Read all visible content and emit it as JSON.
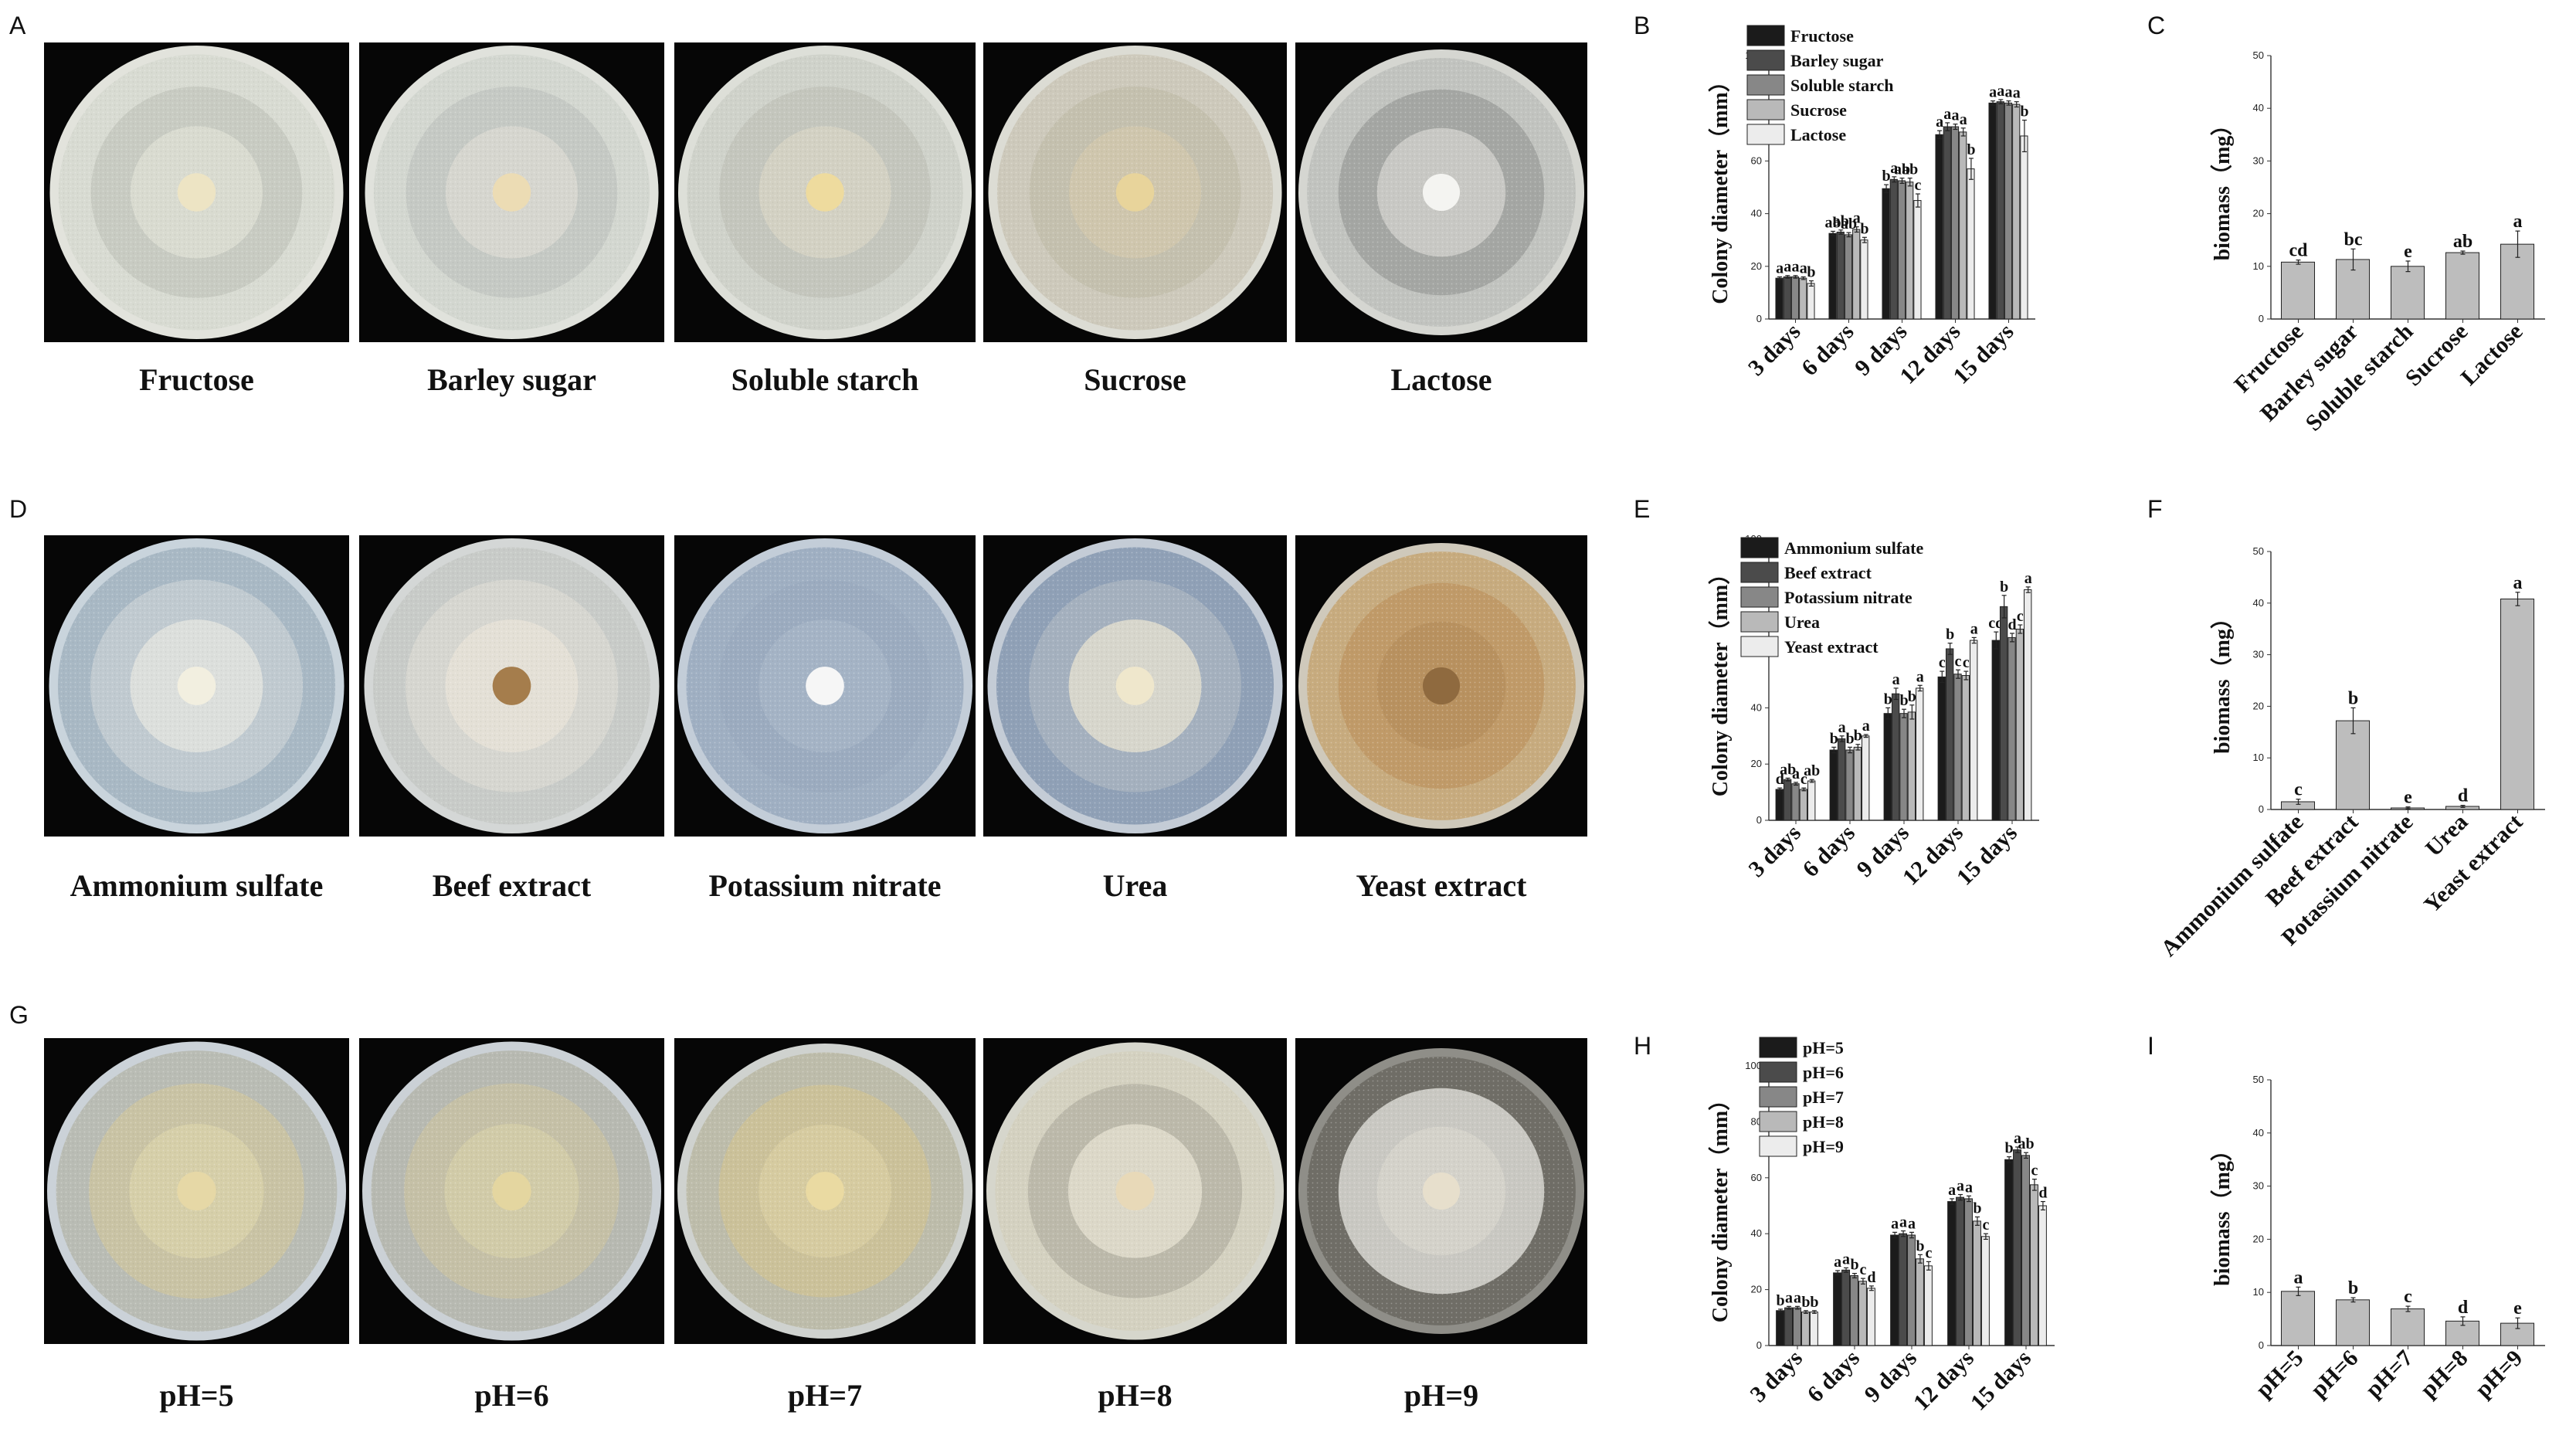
{
  "panels": {
    "A": "A",
    "B": "B",
    "C": "C",
    "D": "D",
    "E": "E",
    "F": "F",
    "G": "G",
    "H": "H",
    "I": "I"
  },
  "photo_rows": [
    {
      "panel": "A",
      "plates": [
        {
          "label": "Fructose",
          "colors": {
            "rim": "#e2e3dc",
            "outer": "#d8dbd2",
            "mid": "#c8cbc2",
            "inner": "#d9dbd0",
            "center": "#ede4c4"
          }
        },
        {
          "label": "Barley sugar",
          "colors": {
            "rim": "#e0e2dc",
            "outer": "#d3d7d0",
            "mid": "#c5c9c4",
            "inner": "#d6d6cf",
            "center": "#ecdcb4"
          }
        },
        {
          "label": "Soluble starch",
          "colors": {
            "rim": "#dddfd8",
            "outer": "#cfd2ca",
            "mid": "#c4c6bd",
            "inner": "#d3d1c3",
            "center": "#eedb9e"
          }
        },
        {
          "label": "Sucrose",
          "colors": {
            "rim": "#dcdcd4",
            "outer": "#cdc9bb",
            "mid": "#c4c0ae",
            "inner": "#cfc6ad",
            "center": "#e8d49b"
          }
        },
        {
          "label": "Lactose",
          "colors": {
            "rim": "#d5d6d1",
            "outer": "#c1c3bf",
            "mid": "#a4a6a3",
            "inner": "#c8c8c4",
            "center": "#f4f4f1"
          }
        }
      ]
    },
    {
      "panel": "D",
      "plates": [
        {
          "label": "Ammonium sulfate",
          "colors": {
            "rim": "#c9d4dc",
            "outer": "#a8b8c4",
            "mid": "#c0cad0",
            "inner": "#dcdfdc",
            "center": "#f2efe0"
          }
        },
        {
          "label": "Beef extract",
          "colors": {
            "rim": "#d4d7d6",
            "outer": "#c8cbc8",
            "mid": "#d6d6d0",
            "inner": "#e4e0d6",
            "center": "#a57d4c"
          }
        },
        {
          "label": "Potassium nitrate",
          "colors": {
            "rim": "#c3cdd8",
            "outer": "#9fafc2",
            "mid": "#9babbf",
            "inner": "#a4b3c5",
            "center": "#f6f6f6"
          }
        },
        {
          "label": "Urea",
          "colors": {
            "rim": "#c4ccd6",
            "outer": "#8fa0b6",
            "mid": "#a4b0be",
            "inner": "#d7d6cc",
            "center": "#efe7cc"
          }
        },
        {
          "label": "Yeast extract",
          "colors": {
            "rim": "#cfc9bb",
            "outer": "#c7ab7e",
            "mid": "#c09a68",
            "inner": "#b8915f",
            "center": "#8f6a3f"
          }
        }
      ]
    },
    {
      "panel": "G",
      "plates": [
        {
          "label": "pH=5",
          "colors": {
            "rim": "#cbd2d8",
            "outer": "#b9bcb4",
            "mid": "#c9c3a4",
            "inner": "#d6cfa9",
            "center": "#e6d8a6"
          }
        },
        {
          "label": "pH=6",
          "colors": {
            "rim": "#cbd1d6",
            "outer": "#b7b9b1",
            "mid": "#c5c0a6",
            "inner": "#d1cba8",
            "center": "#e4d6a0"
          }
        },
        {
          "label": "pH=7",
          "colors": {
            "rim": "#cfd2cf",
            "outer": "#bdbcaa",
            "mid": "#cbc199",
            "inner": "#d6cba0",
            "center": "#eadaa2"
          }
        },
        {
          "label": "pH=8",
          "colors": {
            "rim": "#d6d6cc",
            "outer": "#d4d1c0",
            "mid": "#bcb9aa",
            "inner": "#dcd8c8",
            "center": "#e8d9b8"
          }
        },
        {
          "label": "pH=9",
          "colors": {
            "rim": "#8f8e88",
            "outer": "#6f6d66",
            "mid": "#c9c8c2",
            "inner": "#d4d2ca",
            "center": "#e7dfcc"
          }
        }
      ]
    }
  ],
  "charts": {
    "colors": {
      "series": [
        "#1b1b1b",
        "#4b4b4b",
        "#878787",
        "#b9b9b9",
        "#ececec"
      ],
      "biomass_bar": "#bdbdbd"
    }
  },
  "chart_data": [
    {
      "id": "B",
      "type": "bar",
      "ylabel": "Colony diameter（mm）",
      "ylim": [
        0,
        100
      ],
      "yticks": [
        "0",
        "20",
        "40",
        "60",
        "80",
        "100"
      ],
      "categories": [
        "3 days",
        "6 days",
        "9 days",
        "12 days",
        "15 days"
      ],
      "legend": "top-left",
      "series": [
        {
          "name": "Fructose",
          "values": [
            15.5,
            32.5,
            49.5,
            70,
            82
          ],
          "errors": [
            0.5,
            0.8,
            1.5,
            1.5,
            0.8
          ],
          "letters": [
            "a",
            "ab",
            "b",
            "a",
            "a"
          ]
        },
        {
          "name": "Barley sugar",
          "values": [
            16,
            33,
            53,
            73,
            82.5
          ],
          "errors": [
            0.5,
            0.8,
            1,
            1.5,
            0.8
          ],
          "letters": [
            "a",
            "ab",
            "a",
            "a",
            "a"
          ]
        },
        {
          "name": "Soluble starch",
          "values": [
            16,
            32,
            52.5,
            73,
            82
          ],
          "errors": [
            0.5,
            0.8,
            1,
            1,
            0.8
          ],
          "letters": [
            "a",
            "ab",
            "ab",
            "a",
            "a"
          ]
        },
        {
          "name": "Sucrose",
          "values": [
            15.5,
            34,
            52,
            71,
            81.5
          ],
          "errors": [
            0.5,
            1,
            1.5,
            1.5,
            1
          ],
          "letters": [
            "a",
            "a",
            "ab",
            "a",
            "a"
          ]
        },
        {
          "name": "Lactose",
          "values": [
            13.5,
            30,
            45,
            57,
            69.5
          ],
          "errors": [
            1,
            1,
            2.5,
            4,
            6
          ],
          "letters": [
            "b",
            "b",
            "c",
            "b",
            "b"
          ]
        }
      ]
    },
    {
      "id": "C",
      "type": "bar",
      "ylabel": "biomass（mg）",
      "ylim": [
        0,
        50
      ],
      "yticks": [
        "0",
        "10",
        "20",
        "30",
        "40",
        "50"
      ],
      "categories": [
        "Fructose",
        "Barley sugar",
        "Soluble starch",
        "Sucrose",
        "Lactose"
      ],
      "series": [
        {
          "name": "",
          "values": [
            10.8,
            11.3,
            10.0,
            12.6,
            14.2
          ],
          "errors": [
            0.4,
            2.0,
            1.0,
            0.3,
            2.5
          ],
          "letters": [
            "cd",
            "bc",
            "e",
            "ab",
            "a"
          ]
        }
      ]
    },
    {
      "id": "E",
      "type": "bar",
      "ylabel": "Colony diameter（mm）",
      "ylim": [
        0,
        100
      ],
      "yticks": [
        "0",
        "20",
        "40",
        "60",
        "80",
        "100"
      ],
      "categories": [
        "3 days",
        "6 days",
        "9 days",
        "12 days",
        "15 days"
      ],
      "legend": "top-left",
      "series": [
        {
          "name": "Ammonium sulfate",
          "values": [
            11,
            25,
            38,
            51,
            64
          ],
          "errors": [
            0.5,
            1,
            2,
            2,
            3
          ],
          "letters": [
            "d",
            "b",
            "b",
            "c",
            "cd"
          ]
        },
        {
          "name": "Beef extract",
          "values": [
            14.5,
            29,
            45,
            61,
            76
          ],
          "errors": [
            0.5,
            1,
            2,
            2,
            4
          ],
          "letters": [
            "ab",
            "a",
            "a",
            "b",
            "b"
          ]
        },
        {
          "name": "Potassium nitrate",
          "values": [
            13,
            25,
            38,
            52,
            65
          ],
          "errors": [
            0.5,
            1,
            1.5,
            1.5,
            1.5
          ],
          "letters": [
            "a",
            "b",
            "b",
            "c",
            "d"
          ]
        },
        {
          "name": "Urea",
          "values": [
            11,
            26,
            38.5,
            51.5,
            68
          ],
          "errors": [
            0.5,
            1,
            2.5,
            1.5,
            1.5
          ],
          "letters": [
            "c",
            "b",
            "b",
            "c",
            "c"
          ]
        },
        {
          "name": "Yeast extract",
          "values": [
            14,
            30,
            47,
            64,
            82
          ],
          "errors": [
            0.5,
            0.5,
            1,
            1,
            1
          ],
          "letters": [
            "ab",
            "a",
            "a",
            "a",
            "a"
          ]
        }
      ]
    },
    {
      "id": "F",
      "type": "bar",
      "ylabel": "biomass（mg）",
      "ylim": [
        0,
        50
      ],
      "yticks": [
        "0",
        "10",
        "20",
        "30",
        "40",
        "50"
      ],
      "categories": [
        "Ammonium sulfate",
        "Beef extract",
        "Potassium nitrate",
        "Urea",
        "Yeast extract"
      ],
      "series": [
        {
          "name": "",
          "values": [
            1.5,
            17.2,
            0.3,
            0.6,
            40.8
          ],
          "errors": [
            0.5,
            2.5,
            0.2,
            0.2,
            1.3
          ],
          "letters": [
            "c",
            "b",
            "e",
            "d",
            "a"
          ]
        }
      ]
    },
    {
      "id": "H",
      "type": "bar",
      "ylabel": "Colony diameter（mm）",
      "ylim": [
        0,
        100
      ],
      "yticks": [
        "0",
        "20",
        "40",
        "60",
        "80",
        "100"
      ],
      "categories": [
        "3 days",
        "6 days",
        "9 days",
        "12 days",
        "15 days"
      ],
      "legend": "top-left",
      "series": [
        {
          "name": "pH=5",
          "values": [
            12.5,
            26,
            39.5,
            51.5,
            66.5
          ],
          "errors": [
            0.5,
            0.8,
            1,
            1,
            1
          ],
          "letters": [
            "b",
            "a",
            "a",
            "a",
            "b"
          ]
        },
        {
          "name": "pH=6",
          "values": [
            13.5,
            27,
            40,
            53,
            70
          ],
          "errors": [
            0.5,
            0.8,
            1,
            1,
            1
          ],
          "letters": [
            "a",
            "a",
            "a",
            "a",
            "a"
          ]
        },
        {
          "name": "pH=7",
          "values": [
            13.5,
            25,
            39.5,
            52.5,
            68
          ],
          "errors": [
            0.5,
            0.8,
            1,
            1,
            1
          ],
          "letters": [
            "a",
            "b",
            "a",
            "a",
            "ab"
          ]
        },
        {
          "name": "pH=8",
          "values": [
            12,
            23,
            31,
            44.5,
            57.5
          ],
          "errors": [
            0.5,
            1,
            1.5,
            1.5,
            2
          ],
          "letters": [
            "b",
            "c",
            "b",
            "b",
            "c"
          ]
        },
        {
          "name": "pH=9",
          "values": [
            12,
            20.5,
            28.5,
            39,
            50
          ],
          "errors": [
            0.5,
            0.8,
            1.5,
            1,
            1.5
          ],
          "letters": [
            "b",
            "d",
            "c",
            "c",
            "d"
          ]
        }
      ]
    },
    {
      "id": "I",
      "type": "bar",
      "ylabel": "biomass（mg）",
      "ylim": [
        0,
        50
      ],
      "yticks": [
        "0",
        "10",
        "20",
        "30",
        "40",
        "50"
      ],
      "categories": [
        "pH=5",
        "pH=6",
        "pH=7",
        "pH=8",
        "pH=9"
      ],
      "series": [
        {
          "name": "",
          "values": [
            10.2,
            8.6,
            6.9,
            4.6,
            4.2
          ],
          "errors": [
            0.8,
            0.4,
            0.5,
            0.8,
            1.0
          ],
          "letters": [
            "a",
            "b",
            "c",
            "d",
            "e"
          ]
        }
      ]
    }
  ]
}
